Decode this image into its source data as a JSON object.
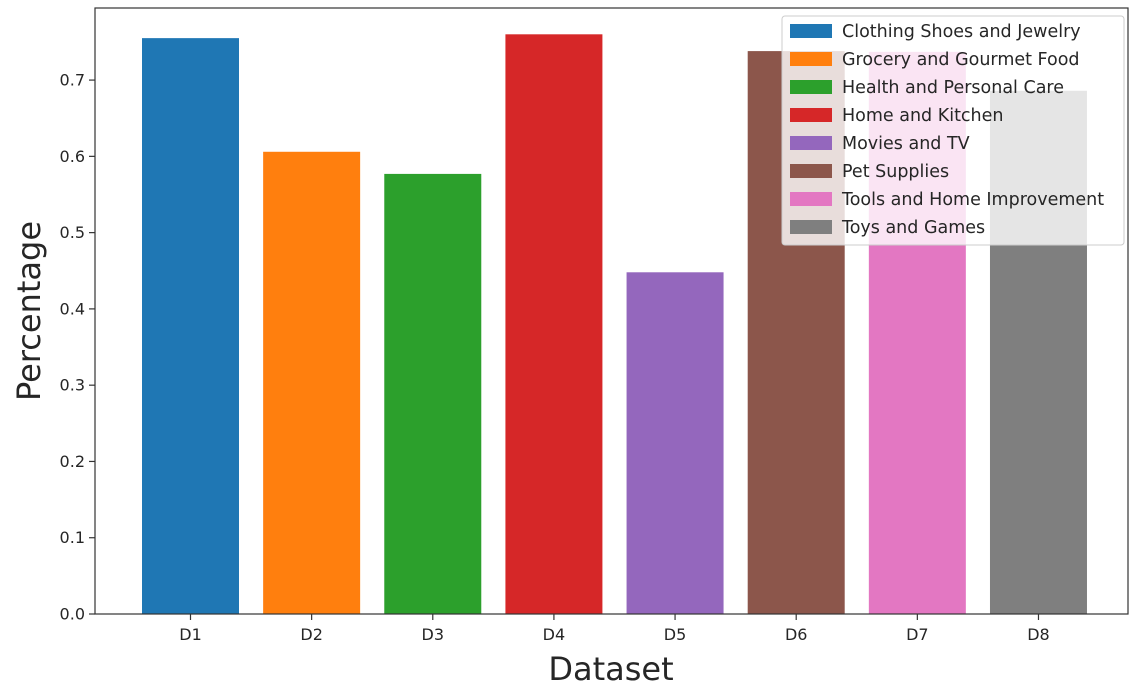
{
  "chart_data": {
    "type": "bar",
    "title": "",
    "xlabel": "Dataset",
    "ylabel": "Percentage",
    "categories": [
      "D1",
      "D2",
      "D3",
      "D4",
      "D5",
      "D6",
      "D7",
      "D8"
    ],
    "values": [
      0.755,
      0.606,
      0.577,
      0.76,
      0.448,
      0.738,
      0.737,
      0.686
    ],
    "series_names": [
      "Clothing Shoes and Jewelry",
      "Grocery and Gourmet Food",
      "Health and Personal Care",
      "Home and Kitchen",
      "Movies and TV",
      "Pet Supplies",
      "Tools and Home Improvement",
      "Toys and Games"
    ],
    "colors": [
      "#1f77b4",
      "#ff7f0e",
      "#2ca02c",
      "#d62728",
      "#9467bd",
      "#8c564b",
      "#e377c2",
      "#7f7f7f"
    ],
    "ylim": [
      0,
      0.7945
    ],
    "yticks": [
      "0.0",
      "0.1",
      "0.2",
      "0.3",
      "0.4",
      "0.5",
      "0.6",
      "0.7"
    ],
    "grid": false,
    "legend_position": "top-right"
  }
}
